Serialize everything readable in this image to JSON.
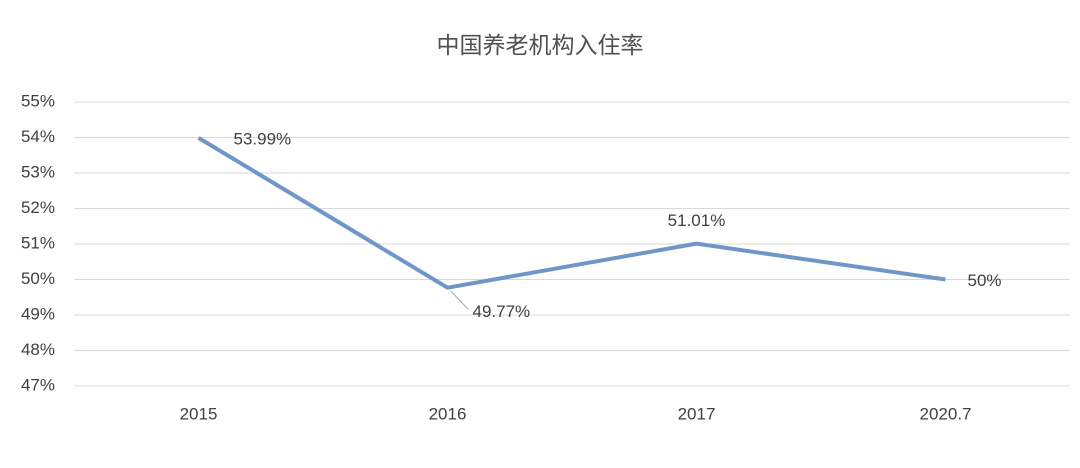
{
  "chart_data": {
    "type": "line",
    "title": "中国养老机构入住率",
    "categories": [
      "2015",
      "2016",
      "2017",
      "2020.7"
    ],
    "values": [
      53.99,
      49.77,
      51.01,
      50
    ],
    "value_labels": [
      "53.99%",
      "49.77%",
      "51.01%",
      "50%"
    ],
    "color": "#7096c8",
    "ylim": [
      47,
      55
    ],
    "yticks": [
      {
        "value": 47,
        "label": "47%"
      },
      {
        "value": 48,
        "label": "48%"
      },
      {
        "value": 49,
        "label": "49%"
      },
      {
        "value": 50,
        "label": "50%"
      },
      {
        "value": 51,
        "label": "51%"
      },
      {
        "value": 52,
        "label": "52%"
      },
      {
        "value": 53,
        "label": "53%"
      },
      {
        "value": 54,
        "label": "54%"
      },
      {
        "value": 55,
        "label": "55%"
      }
    ],
    "grid": true
  }
}
